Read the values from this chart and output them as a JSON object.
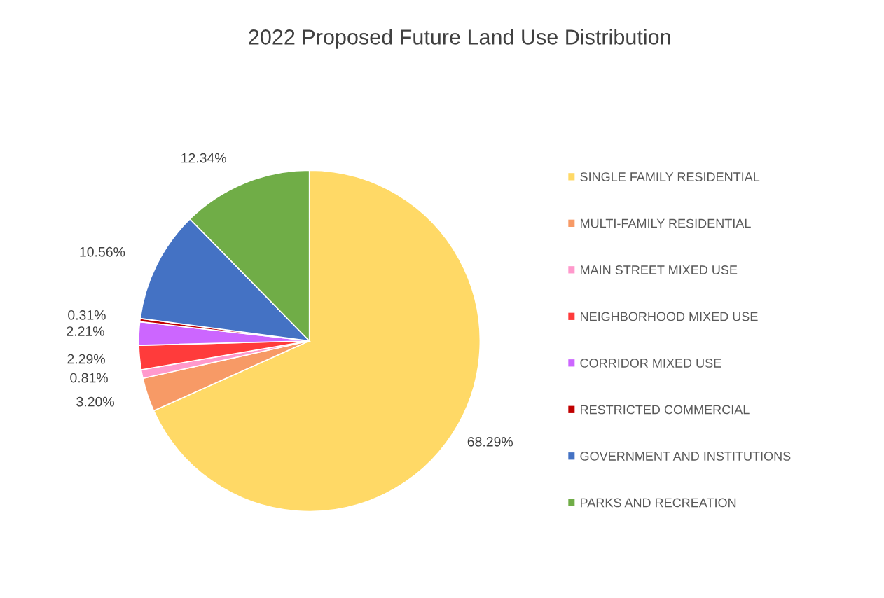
{
  "chart_data": {
    "type": "pie",
    "title": "2022 Proposed Future Land Use Distribution",
    "categories": [
      "SINGLE FAMILY RESIDENTIAL",
      "MULTI-FAMILY RESIDENTIAL",
      "MAIN STREET MIXED USE",
      "NEIGHBORHOOD MIXED USE",
      "CORRIDOR MIXED USE",
      "RESTRICTED COMMERCIAL",
      "GOVERNMENT AND INSTITUTIONS",
      "PARKS AND RECREATION"
    ],
    "values": [
      68.29,
      3.2,
      0.81,
      2.29,
      2.21,
      0.31,
      10.56,
      12.34
    ],
    "value_labels": [
      "68.29%",
      "3.20%",
      "0.81%",
      "2.29%",
      "2.21%",
      "0.31%",
      "10.56%",
      "12.34%"
    ],
    "colors": [
      "#ffd966",
      "#f79a66",
      "#ff99cc",
      "#ff3b3b",
      "#cc66ff",
      "#c00000",
      "#4472c4",
      "#70ad47"
    ],
    "legend": "right"
  }
}
